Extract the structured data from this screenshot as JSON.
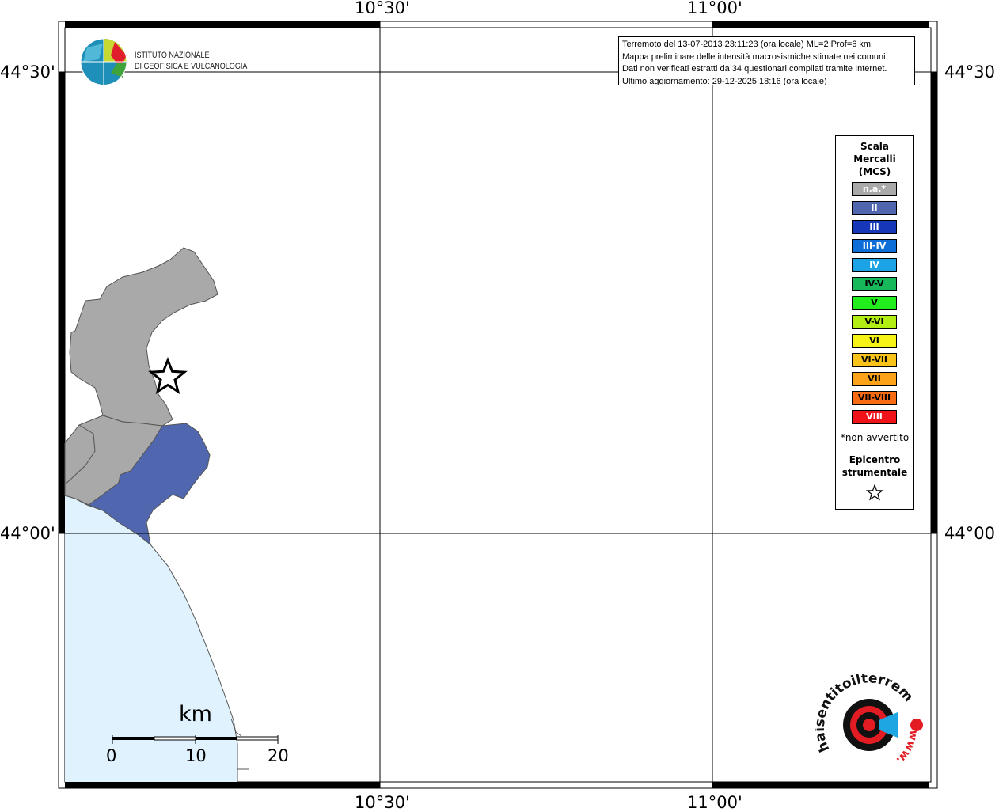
{
  "map": {
    "lon_labels": [
      "10°30'",
      "11°00'"
    ],
    "lat_labels": [
      "44°30'",
      "44°00'"
    ]
  },
  "logo": {
    "line1": "ISTITUTO NAZIONALE",
    "line2": "DI GEOFISICA E VULCANOLOGIA"
  },
  "info": {
    "line1": "Terremoto del 13-07-2013 23:11:23 (ora locale) ML=2 Prof=6 km",
    "line2": "Mappa preliminare delle intensità macrosismiche stimate nei comuni",
    "line3": "Dati non verificati estratti da 34 questionari compilati tramite Internet.",
    "line4": "Ultimo aggiornamento: 29-12-2025 18:16 (ora locale)"
  },
  "legend": {
    "title_lines": [
      "Scala",
      "Mercalli",
      "(MCS)"
    ],
    "classes": [
      {
        "label": "n.a.*",
        "color": "#a9a9a9",
        "text_color": "#ffffff"
      },
      {
        "label": "II",
        "color": "#5067b0",
        "text_color": "#ffffff"
      },
      {
        "label": "III",
        "color": "#1537b8",
        "text_color": "#ffffff"
      },
      {
        "label": "III-IV",
        "color": "#0c6ed6",
        "text_color": "#ffffff"
      },
      {
        "label": "IV",
        "color": "#1ba3e6",
        "text_color": "#ffffff"
      },
      {
        "label": "IV-V",
        "color": "#16b85a",
        "text_color": "#000000"
      },
      {
        "label": "V",
        "color": "#22ee1e",
        "text_color": "#000000"
      },
      {
        "label": "V-VI",
        "color": "#b2ee12",
        "text_color": "#000000"
      },
      {
        "label": "VI",
        "color": "#f7f317",
        "text_color": "#000000"
      },
      {
        "label": "VI-VII",
        "color": "#f9c31a",
        "text_color": "#000000"
      },
      {
        "label": "VII",
        "color": "#fca31a",
        "text_color": "#000000"
      },
      {
        "label": "VII-VIII",
        "color": "#f86b12",
        "text_color": "#000000"
      },
      {
        "label": "VIII",
        "color": "#f0141a",
        "text_color": "#ffffff"
      }
    ],
    "note": "*non avvertito",
    "epicenter_lines": [
      "Epicentro",
      "strumentale"
    ],
    "epicenter_icon": "star-outline-icon"
  },
  "scalebar": {
    "unit": "km",
    "ticks": [
      "0",
      "10",
      "20"
    ]
  },
  "brand": {
    "text": "haisentitoilterremoto.it",
    "prefix": "www.",
    "icon": "earthquake-target-logo-icon"
  },
  "colors": {
    "sea": "#dff2fd",
    "not_available": "#a9a9a9",
    "intensity_ii": "#5067b0"
  }
}
